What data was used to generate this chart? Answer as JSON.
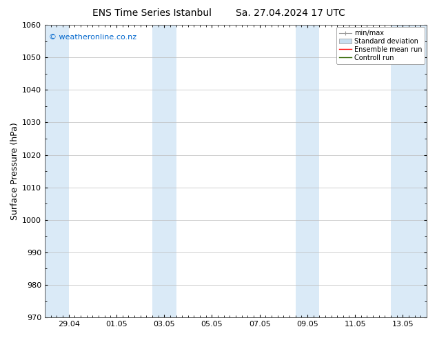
{
  "title_left": "ENS Time Series Istanbul",
  "title_right": "Sa. 27.04.2024 17 UTC",
  "ylabel": "Surface Pressure (hPa)",
  "ylim": [
    970,
    1060
  ],
  "yticks": [
    970,
    980,
    990,
    1000,
    1010,
    1020,
    1030,
    1040,
    1050,
    1060
  ],
  "watermark": "© weatheronline.co.nz",
  "watermark_color": "#0066cc",
  "bg_color": "#ffffff",
  "plot_bg_color": "#ffffff",
  "shaded_band_color": "#daeaf7",
  "x_min": 0.0,
  "x_max": 16.0,
  "xtick_labels": [
    "29.04",
    "01.05",
    "03.05",
    "05.05",
    "07.05",
    "09.05",
    "11.05",
    "13.05"
  ],
  "xtick_positions": [
    1.0,
    3.0,
    5.0,
    7.0,
    9.0,
    11.0,
    13.0,
    15.0
  ],
  "shaded_bands": [
    {
      "x_start": 0.0,
      "x_end": 1.0
    },
    {
      "x_start": 4.5,
      "x_end": 5.5
    },
    {
      "x_start": 10.5,
      "x_end": 11.5
    },
    {
      "x_start": 14.5,
      "x_end": 16.0
    }
  ],
  "legend_items": [
    {
      "label": "min/max",
      "color": "#999999",
      "type": "errorbar"
    },
    {
      "label": "Standard deviation",
      "color": "#c8dff0",
      "type": "bar"
    },
    {
      "label": "Ensemble mean run",
      "color": "#ff0000",
      "type": "line"
    },
    {
      "label": "Controll run",
      "color": "#006600",
      "type": "line"
    }
  ],
  "title_fontsize": 10,
  "ylabel_fontsize": 9,
  "tick_fontsize": 8,
  "legend_fontsize": 7,
  "watermark_fontsize": 8
}
